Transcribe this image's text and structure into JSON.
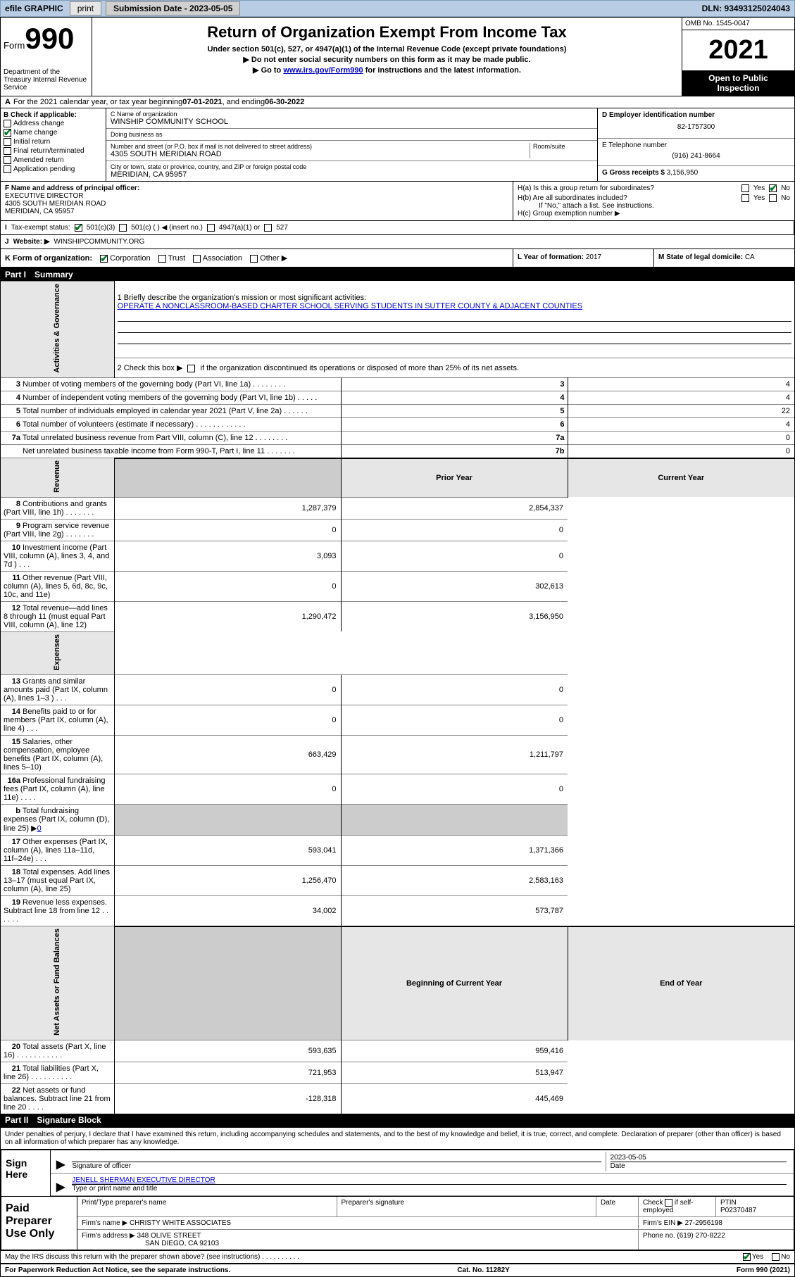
{
  "topbar": {
    "efile_label": "efile GRAPHIC",
    "print_btn": "print",
    "sub_date_label": "Submission Date - 2023-05-05",
    "dln_label": "DLN: 93493125024043"
  },
  "header": {
    "form_word": "Form",
    "form_num": "990",
    "dept": "Department of the Treasury\nInternal Revenue Service",
    "title": "Return of Organization Exempt From Income Tax",
    "sub1": "Under section 501(c), 527, or 4947(a)(1) of the Internal Revenue Code (except private foundations)",
    "sub2": "▶ Do not enter social security numbers on this form as it may be made public.",
    "sub3_pre": "▶ Go to ",
    "sub3_link": "www.irs.gov/Form990",
    "sub3_post": " for instructions and the latest information.",
    "omb": "OMB No. 1545-0047",
    "year": "2021",
    "open1": "Open to Public",
    "open2": "Inspection"
  },
  "rowA": {
    "label_pre": "A",
    "text": "For the 2021 calendar year, or tax year beginning ",
    "begin": "07-01-2021",
    "mid": " , and ending ",
    "end": "06-30-2022"
  },
  "colB": {
    "header": "B Check if applicable:",
    "items": [
      {
        "label": "Address change",
        "checked": false
      },
      {
        "label": "Name change",
        "checked": true
      },
      {
        "label": "Initial return",
        "checked": false
      },
      {
        "label": "Final return/terminated",
        "checked": false
      },
      {
        "label": "Amended return",
        "checked": false
      },
      {
        "label": "Application pending",
        "checked": false
      }
    ]
  },
  "colC": {
    "c_label": "C Name of organization",
    "c_val": "WINSHIP COMMUNITY SCHOOL",
    "dba_label": "Doing business as",
    "dba_val": "",
    "addr_label": "Number and street (or P.O. box if mail is not delivered to street address)",
    "room_label": "Room/suite",
    "addr_val": "4305 SOUTH MERIDIAN ROAD",
    "city_label": "City or town, state or province, country, and ZIP or foreign postal code",
    "city_val": "MERIDIAN, CA  95957"
  },
  "colD": {
    "d_label": "D Employer identification number",
    "d_val": "82-1757300",
    "e_label": "E Telephone number",
    "e_val": "(916) 241-8664",
    "g_label": "G Gross receipts $",
    "g_val": "3,156,950"
  },
  "rowF": {
    "f_label": "F Name and address of principal officer:",
    "f_val1": "EXECUTIVE DIRECTOR",
    "f_val2": "4305 SOUTH MERIDIAN ROAD",
    "f_val3": "MERIDIAN, CA  95957"
  },
  "rowH": {
    "ha_label": "H(a)  Is this a group return for subordinates?",
    "hb_label": "H(b)  Are all subordinates included?",
    "hb_note": "If \"No,\" attach a list. See instructions.",
    "hc_label": "H(c)  Group exemption number ▶",
    "yes": "Yes",
    "no": "No"
  },
  "rowI": {
    "label": "I",
    "tax_label": "Tax-exempt status:",
    "opt1": "501(c)(3)",
    "opt2": "501(c) (   ) ◀ (insert no.)",
    "opt3": "4947(a)(1) or",
    "opt4": "527"
  },
  "rowJ": {
    "label": "J",
    "web_label": "Website: ▶",
    "web_val": "WINSHIPCOMMUNITY.ORG"
  },
  "rowK": {
    "label": "K Form of organization:",
    "opts": [
      "Corporation",
      "Trust",
      "Association",
      "Other ▶"
    ],
    "l_label": "L Year of formation: ",
    "l_val": "2017",
    "m_label": "M State of legal domicile: ",
    "m_val": "CA"
  },
  "part1": {
    "num": "Part I",
    "title": "Summary"
  },
  "summary": {
    "q1_label": "1   Briefly describe the organization's mission or most significant activities:",
    "q1_val": "OPERATE A NONCLASSROOM-BASED CHARTER SCHOOL SERVING STUDENTS IN SUTTER COUNTY & ADJACENT COUNTIES",
    "q2_label": "2   Check this box ▶",
    "q2_post": "if the organization discontinued its operations or disposed of more than 25% of its net assets.",
    "rows_gov": [
      {
        "n": "3",
        "label": "Number of voting members of the governing body (Part VI, line 1a)   .    .    .    .    .    .    .    .",
        "box": "3",
        "val": "4"
      },
      {
        "n": "4",
        "label": "Number of independent voting members of the governing body (Part VI, line 1b)    .    .    .    .    .",
        "box": "4",
        "val": "4"
      },
      {
        "n": "5",
        "label": "Total number of individuals employed in calendar year 2021 (Part V, line 2a)    .    .    .    .    .    .",
        "box": "5",
        "val": "22"
      },
      {
        "n": "6",
        "label": "Total number of volunteers (estimate if necessary)   .    .    .    .    .    .    .    .    .    .    .    .",
        "box": "6",
        "val": "4"
      },
      {
        "n": "7a",
        "label": "Total unrelated business revenue from Part VIII, column (C), line 12   .    .    .    .    .    .    .    .",
        "box": "7a",
        "val": "0"
      },
      {
        "n": "",
        "label": "Net unrelated business taxable income from Form 990-T, Part I, line 11    .    .    .    .    .    .    .",
        "box": "7b",
        "val": "0"
      }
    ],
    "hdr_prior": "Prior Year",
    "hdr_curr": "Current Year",
    "rows_rev": [
      {
        "n": "8",
        "label": "Contributions and grants (Part VIII, line 1h)    .    .    .    .    .    .    .",
        "prior": "1,287,379",
        "curr": "2,854,337"
      },
      {
        "n": "9",
        "label": "Program service revenue (Part VIII, line 2g)   .    .    .    .    .    .    .",
        "prior": "0",
        "curr": "0"
      },
      {
        "n": "10",
        "label": "Investment income (Part VIII, column (A), lines 3, 4, and 7d )   .    .    .",
        "prior": "3,093",
        "curr": "0"
      },
      {
        "n": "11",
        "label": "Other revenue (Part VIII, column (A), lines 5, 6d, 8c, 9c, 10c, and 11e)",
        "prior": "0",
        "curr": "302,613"
      },
      {
        "n": "12",
        "label": "Total revenue—add lines 8 through 11 (must equal Part VIII, column (A), line 12)",
        "prior": "1,290,472",
        "curr": "3,156,950"
      }
    ],
    "rows_exp": [
      {
        "n": "13",
        "label": "Grants and similar amounts paid (Part IX, column (A), lines 1–3 )   .    .    .",
        "prior": "0",
        "curr": "0"
      },
      {
        "n": "14",
        "label": "Benefits paid to or for members (Part IX, column (A), line 4)   .    .    .",
        "prior": "0",
        "curr": "0"
      },
      {
        "n": "15",
        "label": "Salaries, other compensation, employee benefits (Part IX, column (A), lines 5–10)",
        "prior": "663,429",
        "curr": "1,211,797"
      },
      {
        "n": "16a",
        "label": "Professional fundraising fees (Part IX, column (A), line 11e)   .    .    .    .",
        "prior": "0",
        "curr": "0"
      }
    ],
    "row_16b": {
      "n": "b",
      "label": "Total fundraising expenses (Part IX, column (D), line 25) ▶",
      "val": "0"
    },
    "rows_exp2": [
      {
        "n": "17",
        "label": "Other expenses (Part IX, column (A), lines 11a–11d, 11f–24e)   .    .    .",
        "prior": "593,041",
        "curr": "1,371,366"
      },
      {
        "n": "18",
        "label": "Total expenses. Add lines 13–17 (must equal Part IX, column (A), line 25)",
        "prior": "1,256,470",
        "curr": "2,583,163"
      },
      {
        "n": "19",
        "label": "Revenue less expenses. Subtract line 18 from line 12   .    .    .    .    .    .",
        "prior": "34,002",
        "curr": "573,787"
      }
    ],
    "hdr_begin": "Beginning of Current Year",
    "hdr_end": "End of Year",
    "rows_net": [
      {
        "n": "20",
        "label": "Total assets (Part X, line 16)   .    .    .    .    .    .    .    .    .    .    .",
        "prior": "593,635",
        "curr": "959,416"
      },
      {
        "n": "21",
        "label": "Total liabilities (Part X, line 26)   .    .    .    .    .    .    .    .    .    .",
        "prior": "721,953",
        "curr": "513,947"
      },
      {
        "n": "22",
        "label": "Net assets or fund balances. Subtract line 21 from line 20   .    .    .    .",
        "prior": "-128,318",
        "curr": "445,469"
      }
    ],
    "vtab_gov": "Activities & Governance",
    "vtab_rev": "Revenue",
    "vtab_exp": "Expenses",
    "vtab_net": "Net Assets or Fund Balances"
  },
  "part2": {
    "num": "Part II",
    "title": "Signature Block"
  },
  "penalties": "Under penalties of perjury, I declare that I have examined this return, including accompanying schedules and statements, and to the best of my knowledge and belief, it is true, correct, and complete. Declaration of preparer (other than officer) is based on all information of which preparer has any knowledge.",
  "sign": {
    "left": "Sign Here",
    "sig_label": "Signature of officer",
    "date_label": "Date",
    "date_val": "2023-05-05",
    "name_val": "JENELL SHERMAN  EXECUTIVE DIRECTOR",
    "name_label": "Type or print name and title"
  },
  "prep": {
    "left": "Paid Preparer Use Only",
    "h1": "Print/Type preparer's name",
    "h2": "Preparer's signature",
    "h3": "Date",
    "h4_pre": "Check",
    "h4_post": "if self-employed",
    "h5": "PTIN",
    "ptin": "P02370487",
    "firm_name_label": "Firm's name     ▶",
    "firm_name": "CHRISTY WHITE ASSOCIATES",
    "firm_ein_label": "Firm's EIN ▶",
    "firm_ein": "27-2956198",
    "firm_addr_label": "Firm's address ▶",
    "firm_addr1": "348 OLIVE STREET",
    "firm_addr2": "SAN DIEGO, CA  92103",
    "phone_label": "Phone no.",
    "phone": "(619) 270-8222"
  },
  "footer": {
    "discuss": "May the IRS discuss this return with the preparer shown above? (see instructions)    .    .    .    .    .    .    .    .    .    .",
    "yes": "Yes",
    "no": "No",
    "paperwork": "For Paperwork Reduction Act Notice, see the separate instructions.",
    "cat": "Cat. No. 11282Y",
    "form": "Form 990 (2021)"
  }
}
